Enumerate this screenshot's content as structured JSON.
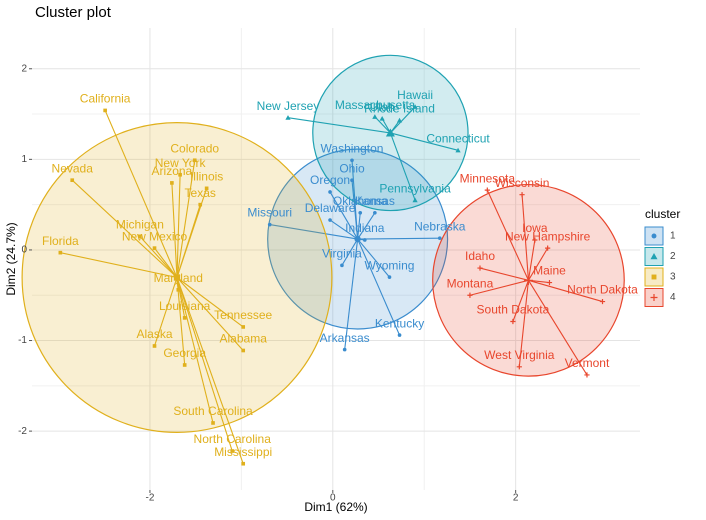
{
  "chart_data": {
    "type": "cluster",
    "title": "Cluster plot",
    "xlabel": "Dim1 (62%)",
    "ylabel": "Dim2 (24.7%)",
    "legend_title": "cluster",
    "legend": "right",
    "grid": true,
    "xlim": [
      -3.29,
      3.36
    ],
    "ylim": [
      -2.65,
      2.45
    ],
    "xticks": [
      -2,
      0,
      2
    ],
    "yticks": [
      -2,
      -1,
      0,
      1,
      2
    ],
    "series": [
      {
        "name": "1",
        "color": "#3a8cce",
        "marker": "circle",
        "labels": [
          "Washington",
          "Ohio",
          "Oregon",
          "Kansas",
          "Oklahoma",
          "Delaware",
          "Missouri",
          "Indiana",
          "Nebraska",
          "Virginia",
          "Wyoming",
          "Kentucky",
          "Arkansas"
        ],
        "x": [
          0.21,
          0.21,
          -0.03,
          0.46,
          0.3,
          -0.03,
          -0.69,
          0.35,
          1.17,
          0.1,
          0.62,
          0.73,
          0.13
        ],
        "values": [
          0.99,
          0.77,
          0.64,
          0.41,
          0.41,
          0.33,
          0.28,
          0.11,
          0.13,
          -0.17,
          -0.3,
          -0.94,
          -1.1
        ]
      },
      {
        "name": "2",
        "color": "#1fa2b2",
        "marker": "triangle",
        "labels": [
          "Hawaii",
          "Massachusetts",
          "Utah",
          "Rhode Island",
          "New Jersey",
          "Connecticut",
          "Pennsylvania"
        ],
        "x": [
          0.9,
          0.46,
          0.54,
          0.73,
          -0.49,
          1.37,
          0.9
        ],
        "values": [
          1.58,
          1.47,
          1.45,
          1.43,
          1.46,
          1.1,
          0.55
        ]
      },
      {
        "name": "3",
        "color": "#e0b01c",
        "marker": "square",
        "labels": [
          "California",
          "Nevada",
          "Florida",
          "Michigan",
          "Arizona",
          "New York",
          "Colorado",
          "Illinois",
          "Texas",
          "New Mexico",
          "Maryland",
          "Louisiana",
          "Alaska",
          "Georgia",
          "Tennessee",
          "Alabama",
          "South Carolina",
          "North Carolina",
          "Mississippi"
        ],
        "x": [
          -2.49,
          -2.85,
          -2.98,
          -2.11,
          -1.76,
          -1.67,
          -1.51,
          -1.38,
          -1.45,
          -1.95,
          -1.69,
          -1.62,
          -1.95,
          -1.62,
          -0.98,
          -0.98,
          -1.31,
          -1.1,
          -0.98
        ],
        "values": [
          1.54,
          0.77,
          -0.03,
          0.15,
          0.74,
          0.83,
          0.99,
          0.68,
          0.5,
          0.02,
          -0.44,
          -0.75,
          -1.06,
          -1.27,
          -0.85,
          -1.11,
          -1.91,
          -2.22,
          -2.36
        ]
      },
      {
        "name": "4",
        "color": "#e8462d",
        "marker": "plus",
        "labels": [
          "Minnesota",
          "Wisconsin",
          "Iowa",
          "Idaho",
          "New Hampshire",
          "Maine",
          "North Dakota",
          "Montana",
          "South Dakota",
          "Vermont",
          "West Virginia"
        ],
        "x": [
          1.69,
          2.07,
          2.21,
          1.61,
          2.35,
          2.37,
          2.95,
          1.5,
          1.97,
          2.78,
          2.04
        ],
        "values": [
          0.66,
          0.61,
          0.11,
          -0.2,
          0.02,
          -0.36,
          -0.57,
          -0.5,
          -0.79,
          -1.38,
          -1.29
        ]
      }
    ]
  }
}
